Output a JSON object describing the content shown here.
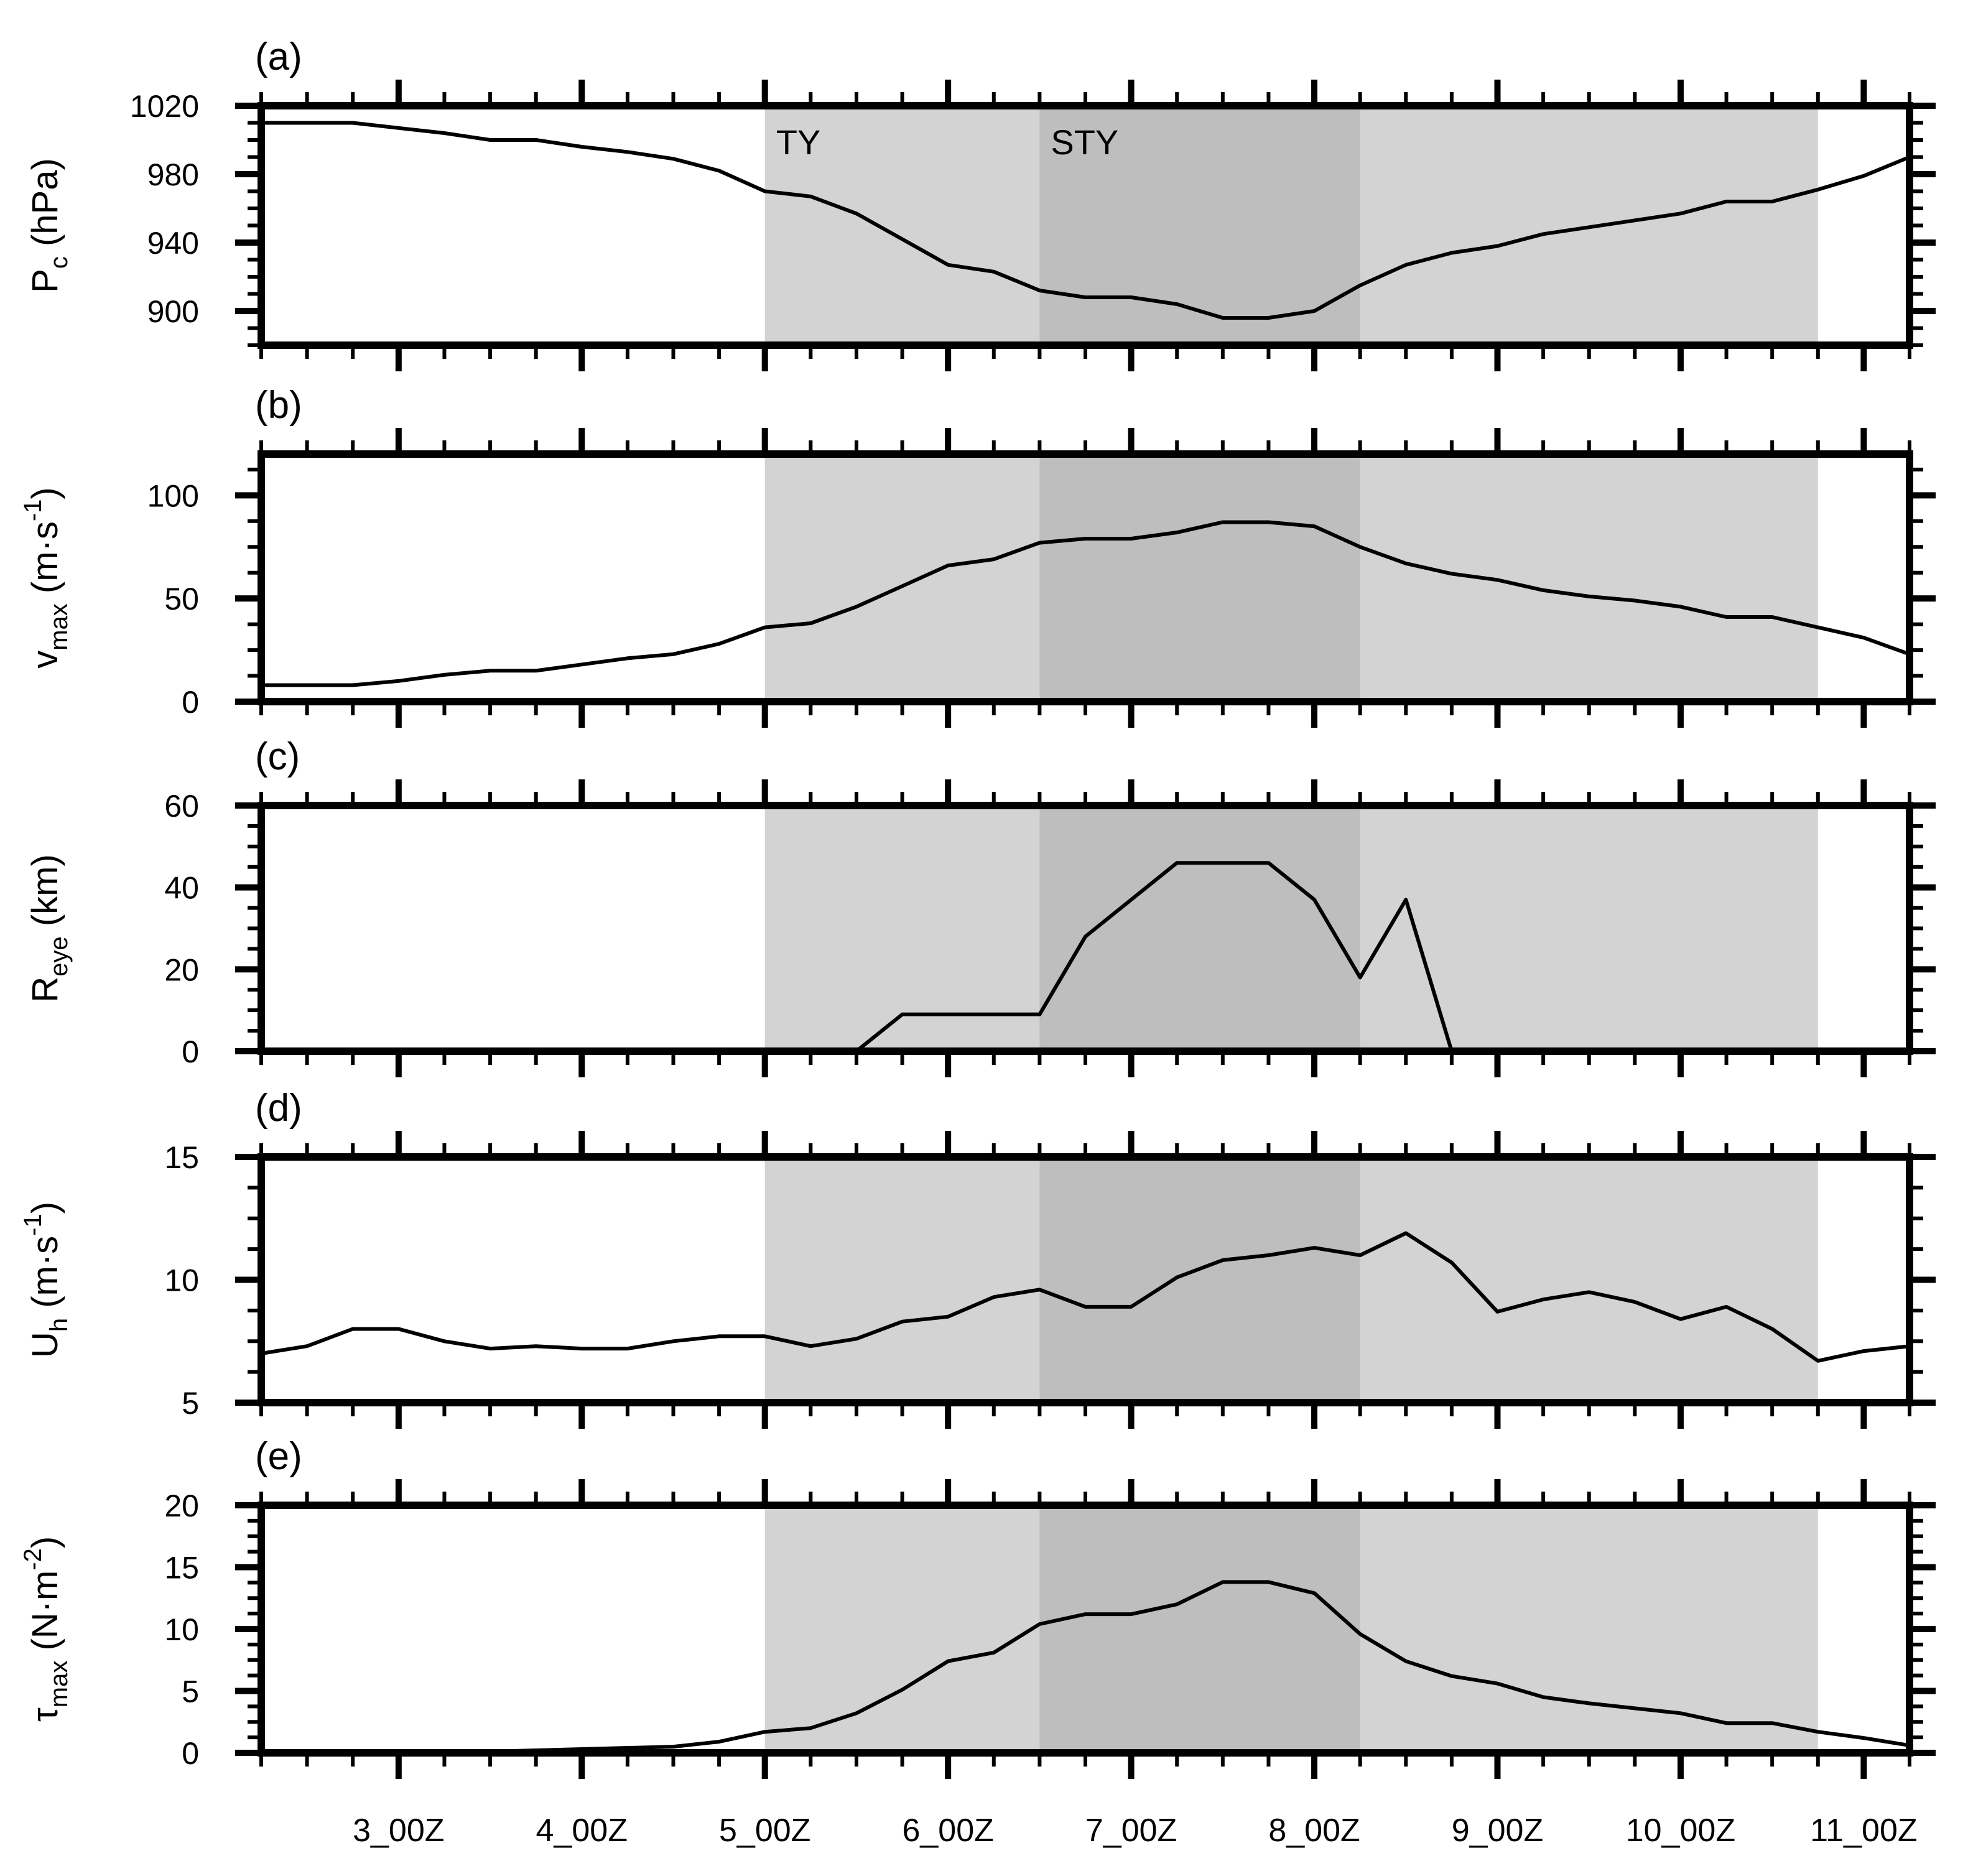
{
  "chart_data": {
    "type": "line",
    "x_tick_labels": [
      "3_00Z",
      "4_00Z",
      "5_00Z",
      "6_00Z",
      "7_00Z",
      "8_00Z",
      "9_00Z",
      "10_00Z",
      "11_00Z"
    ],
    "xlim": [
      2.25,
      11.25
    ],
    "shading": [
      {
        "label": "TY",
        "x_start": 5.0,
        "x_end": 10.75,
        "color": "#d3d3d3"
      },
      {
        "label": "STY",
        "x_start": 6.5,
        "x_end": 8.25,
        "color": "#bebebe"
      }
    ],
    "x": [
      2.25,
      2.5,
      2.75,
      3.0,
      3.25,
      3.5,
      3.75,
      4.0,
      4.25,
      4.5,
      4.75,
      5.0,
      5.25,
      5.5,
      5.75,
      6.0,
      6.25,
      6.5,
      6.75,
      7.0,
      7.25,
      7.5,
      7.75,
      8.0,
      8.25,
      8.5,
      8.75,
      9.0,
      9.25,
      9.5,
      9.75,
      10.0,
      10.25,
      10.5,
      10.75,
      11.0,
      11.25
    ],
    "panels": [
      {
        "tag": "(a)",
        "ylabel_main": "P",
        "ylabel_sub": "c",
        "ylabel_unit": " (hPa)",
        "ylabel_sup": "",
        "ylabel_tail": "",
        "ylim": [
          880,
          1020
        ],
        "yticks": [
          900,
          940,
          980,
          1020
        ],
        "values": [
          1010,
          1010,
          1010,
          1007,
          1004,
          1000,
          1000,
          996,
          993,
          989,
          982,
          970,
          967,
          957,
          942,
          927,
          923,
          912,
          908,
          908,
          904,
          896,
          896,
          900,
          915,
          927,
          934,
          938,
          945,
          949,
          953,
          957,
          964,
          964,
          971,
          979,
          990
        ]
      },
      {
        "tag": "(b)",
        "ylabel_main": "v",
        "ylabel_sub": "max",
        "ylabel_unit": " (m·s",
        "ylabel_sup": "-1",
        "ylabel_tail": ")",
        "ylim": [
          0,
          120
        ],
        "yticks": [
          0,
          50,
          100
        ],
        "values": [
          8,
          8,
          8,
          10,
          13,
          15,
          15,
          18,
          21,
          23,
          28,
          36,
          38,
          46,
          56,
          66,
          69,
          77,
          79,
          79,
          82,
          87,
          87,
          85,
          75,
          67,
          62,
          59,
          54,
          51,
          49,
          46,
          41,
          41,
          36,
          31,
          23
        ]
      },
      {
        "tag": "(c)",
        "ylabel_main": "R",
        "ylabel_sub": "eye",
        "ylabel_unit": " (km)",
        "ylabel_sup": "",
        "ylabel_tail": "",
        "ylim": [
          0,
          60
        ],
        "yticks": [
          0,
          20,
          40,
          60
        ],
        "values": [
          0,
          0,
          0,
          0,
          0,
          0,
          0,
          0,
          0,
          0,
          0,
          0,
          0,
          0,
          9,
          9,
          9,
          9,
          28,
          37,
          46,
          46,
          46,
          37,
          18,
          37,
          0,
          0,
          0,
          0,
          0,
          0,
          0,
          0,
          0,
          0,
          0
        ]
      },
      {
        "tag": "(d)",
        "ylabel_main": "U",
        "ylabel_sub": "h",
        "ylabel_unit": " (m·s",
        "ylabel_sup": "-1",
        "ylabel_tail": ")",
        "ylim": [
          5,
          15
        ],
        "yticks": [
          5,
          10,
          15
        ],
        "values": [
          7.0,
          7.3,
          8.0,
          8.0,
          7.5,
          7.2,
          7.3,
          7.2,
          7.2,
          7.5,
          7.7,
          7.7,
          7.3,
          7.6,
          8.3,
          8.5,
          9.3,
          9.6,
          8.9,
          8.9,
          10.1,
          10.8,
          11.0,
          11.3,
          11.0,
          11.9,
          10.7,
          8.7,
          9.2,
          9.5,
          9.1,
          8.4,
          8.9,
          8.0,
          6.7,
          7.1,
          7.3
        ]
      },
      {
        "tag": "(e)",
        "ylabel_main": "τ",
        "ylabel_sub": "max",
        "ylabel_unit": " (N·m",
        "ylabel_sup": "-2",
        "ylabel_tail": ")",
        "ylim": [
          0,
          20
        ],
        "yticks": [
          0,
          5,
          10,
          15,
          20
        ],
        "values": [
          0.1,
          0.1,
          0.1,
          0.1,
          0.1,
          0.1,
          0.2,
          0.3,
          0.4,
          0.5,
          0.9,
          1.7,
          2.0,
          3.2,
          5.1,
          7.4,
          8.1,
          10.4,
          11.2,
          11.2,
          12.0,
          13.8,
          13.8,
          12.9,
          9.6,
          7.4,
          6.2,
          5.6,
          4.5,
          4.0,
          3.6,
          3.2,
          2.4,
          2.4,
          1.7,
          1.2,
          0.6
        ]
      }
    ]
  }
}
